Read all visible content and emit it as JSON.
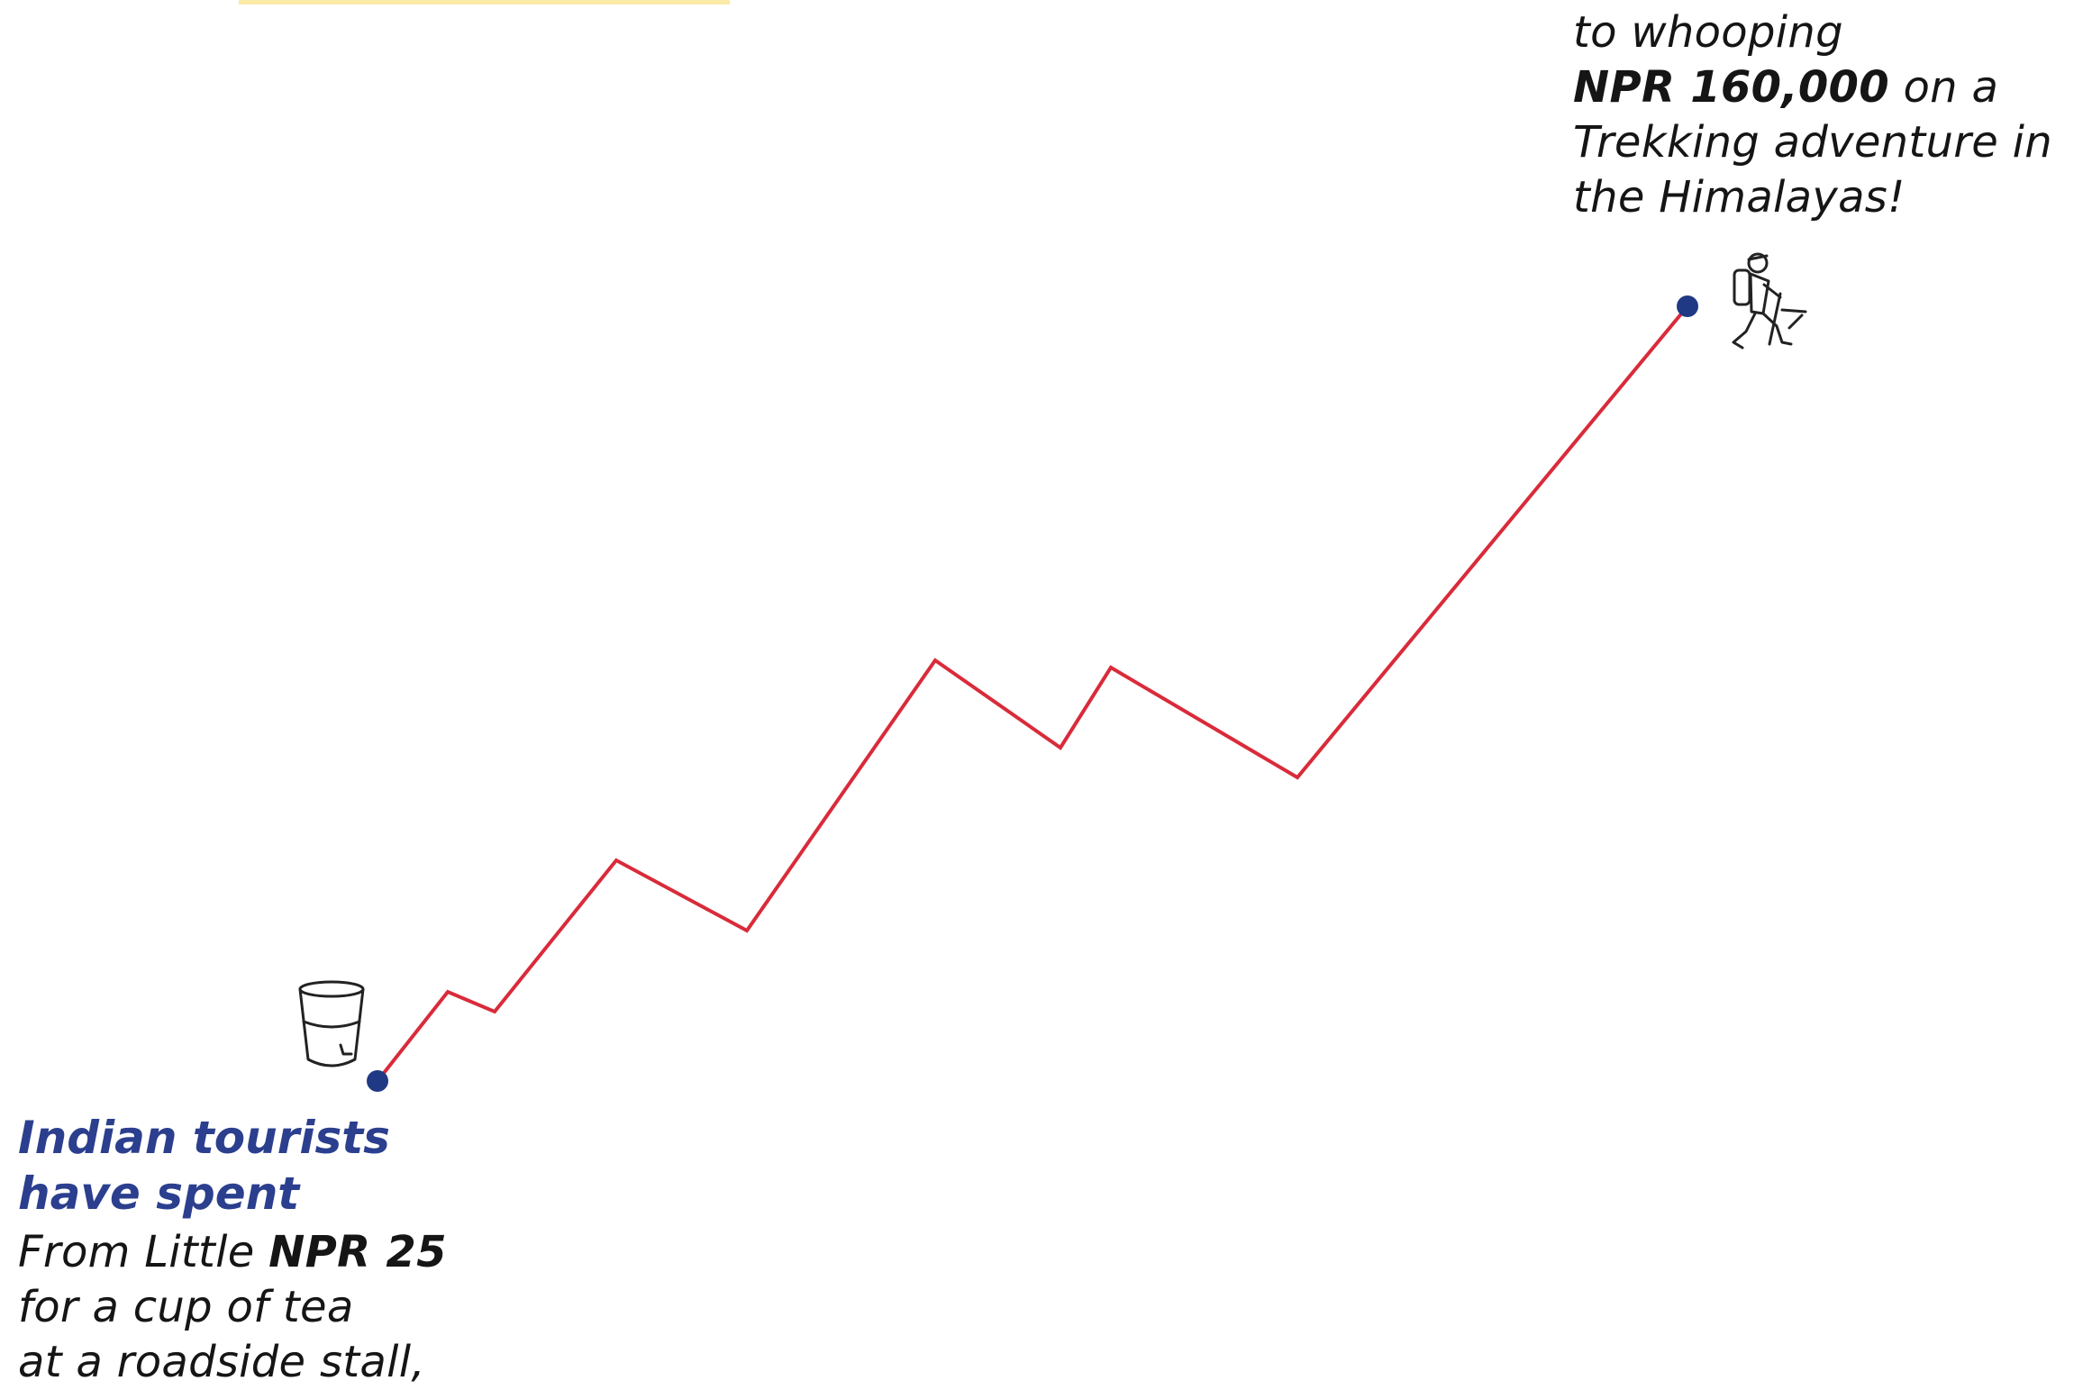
{
  "colors": {
    "line": "#d92b3a",
    "dot": "#1f3985",
    "heading": "#2b3f8e",
    "text": "#151515",
    "accent_bar": "#fbe9a6"
  },
  "top_caption": {
    "line1": "to whooping",
    "amount": "NPR 160,000",
    "line2_rest": " on a",
    "line3": "Trekking adventure in",
    "line4": "the Himalayas!"
  },
  "bottom_heading": {
    "line1": "Indian tourists",
    "line2": "have spent"
  },
  "bottom_caption": {
    "line1_prefix": "From Little ",
    "amount": "NPR 25",
    "line2": "for a cup of tea",
    "line3": "at a roadside stall,"
  },
  "icons": {
    "start": "tea-glass-icon",
    "end": "hiker-icon"
  }
}
